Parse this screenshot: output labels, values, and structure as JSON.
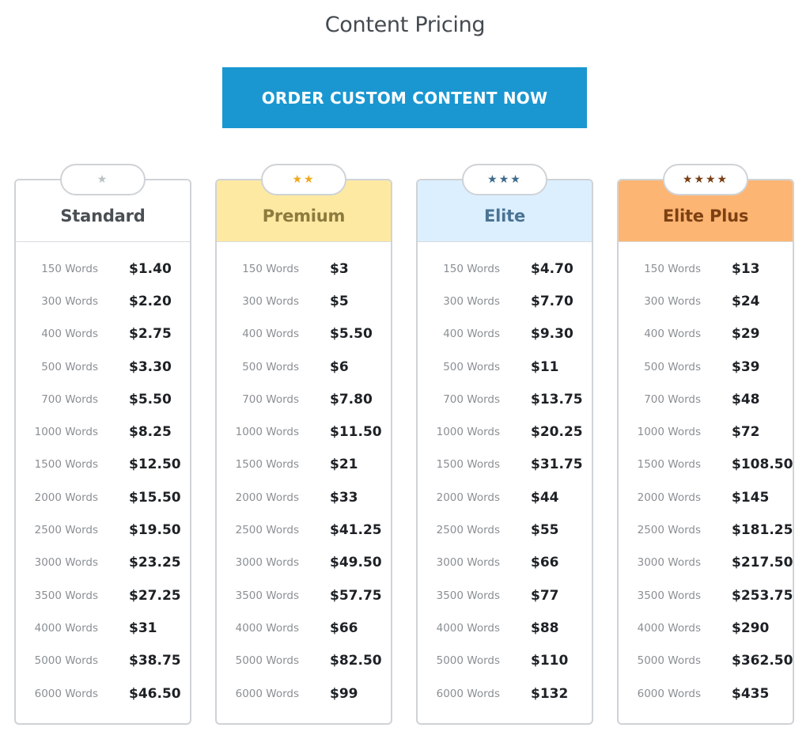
{
  "page": {
    "title": "Content Pricing",
    "order_button_label": "ORDER CUSTOM CONTENT NOW"
  },
  "colors": {
    "button": "#1a97d1",
    "border": "#cfd3d7"
  },
  "plans": [
    {
      "name": "Standard",
      "stars": "★",
      "star_color": "#b9c0c6",
      "header_bg": "#ffffff",
      "name_color": "#4a4f54",
      "rows": [
        {
          "words": "150 Words",
          "price": "$1.40"
        },
        {
          "words": "300 Words",
          "price": "$2.20"
        },
        {
          "words": "400 Words",
          "price": "$2.75"
        },
        {
          "words": "500 Words",
          "price": "$3.30"
        },
        {
          "words": "700 Words",
          "price": "$5.50"
        },
        {
          "words": "1000 Words",
          "price": "$8.25"
        },
        {
          "words": "1500 Words",
          "price": "$12.50"
        },
        {
          "words": "2000 Words",
          "price": "$15.50"
        },
        {
          "words": "2500 Words",
          "price": "$19.50"
        },
        {
          "words": "3000 Words",
          "price": "$23.25"
        },
        {
          "words": "3500 Words",
          "price": "$27.25"
        },
        {
          "words": "4000 Words",
          "price": "$31"
        },
        {
          "words": "5000 Words",
          "price": "$38.75"
        },
        {
          "words": "6000 Words",
          "price": "$46.50"
        }
      ]
    },
    {
      "name": "Premium",
      "stars": "★★",
      "star_color": "#f0a81c",
      "header_bg": "#fde9a2",
      "name_color": "#8c7a3e",
      "rows": [
        {
          "words": "150 Words",
          "price": "$3"
        },
        {
          "words": "300 Words",
          "price": "$5"
        },
        {
          "words": "400 Words",
          "price": "$5.50"
        },
        {
          "words": "500 Words",
          "price": "$6"
        },
        {
          "words": "700 Words",
          "price": "$7.80"
        },
        {
          "words": "1000 Words",
          "price": "$11.50"
        },
        {
          "words": "1500 Words",
          "price": "$21"
        },
        {
          "words": "2000 Words",
          "price": "$33"
        },
        {
          "words": "2500 Words",
          "price": "$41.25"
        },
        {
          "words": "3000 Words",
          "price": "$49.50"
        },
        {
          "words": "3500 Words",
          "price": "$57.75"
        },
        {
          "words": "4000 Words",
          "price": "$66"
        },
        {
          "words": "5000 Words",
          "price": "$82.50"
        },
        {
          "words": "6000 Words",
          "price": "$99"
        }
      ]
    },
    {
      "name": "Elite",
      "stars": "★★★",
      "star_color": "#3f6a8c",
      "header_bg": "#dcefff",
      "name_color": "#4a7394",
      "rows": [
        {
          "words": "150 Words",
          "price": "$4.70"
        },
        {
          "words": "300 Words",
          "price": "$7.70"
        },
        {
          "words": "400 Words",
          "price": "$9.30"
        },
        {
          "words": "500 Words",
          "price": "$11"
        },
        {
          "words": "700 Words",
          "price": "$13.75"
        },
        {
          "words": "1000 Words",
          "price": "$20.25"
        },
        {
          "words": "1500 Words",
          "price": "$31.75"
        },
        {
          "words": "2000 Words",
          "price": "$44"
        },
        {
          "words": "2500 Words",
          "price": "$55"
        },
        {
          "words": "3000 Words",
          "price": "$66"
        },
        {
          "words": "3500 Words",
          "price": "$77"
        },
        {
          "words": "4000 Words",
          "price": "$88"
        },
        {
          "words": "5000 Words",
          "price": "$110"
        },
        {
          "words": "6000 Words",
          "price": "$132"
        }
      ]
    },
    {
      "name": "Elite Plus",
      "stars": "★★★★",
      "star_color": "#7a3e14",
      "header_bg": "#fdb573",
      "name_color": "#7c4012",
      "rows": [
        {
          "words": "150 Words",
          "price": "$13"
        },
        {
          "words": "300 Words",
          "price": "$24"
        },
        {
          "words": "400 Words",
          "price": "$29"
        },
        {
          "words": "500 Words",
          "price": "$39"
        },
        {
          "words": "700 Words",
          "price": "$48"
        },
        {
          "words": "1000 Words",
          "price": "$72"
        },
        {
          "words": "1500 Words",
          "price": "$108.50"
        },
        {
          "words": "2000 Words",
          "price": "$145"
        },
        {
          "words": "2500 Words",
          "price": "$181.25"
        },
        {
          "words": "3000 Words",
          "price": "$217.50"
        },
        {
          "words": "3500 Words",
          "price": "$253.75"
        },
        {
          "words": "4000 Words",
          "price": "$290"
        },
        {
          "words": "5000 Words",
          "price": "$362.50"
        },
        {
          "words": "6000 Words",
          "price": "$435"
        }
      ]
    }
  ]
}
